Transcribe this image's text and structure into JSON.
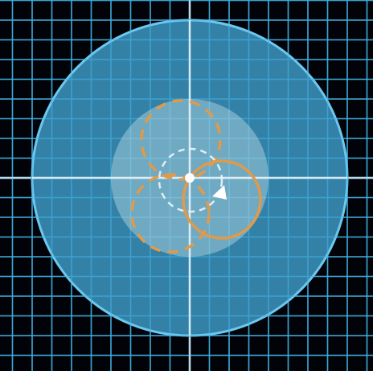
{
  "colors": {
    "background": "#020308",
    "grid": "#3fb0e0",
    "axis": "#eef6fb",
    "outer_fill": "#3a93bd",
    "outer_stroke": "#6cc8f0",
    "inner_fill": "#c6dfe8",
    "path_orange": "#e09a4a",
    "small_dashed": "#e8f6fb",
    "marker": "#ffffff"
  },
  "icons": {
    "center": "center-dot-icon",
    "direction": "direction-arrow-icon"
  }
}
